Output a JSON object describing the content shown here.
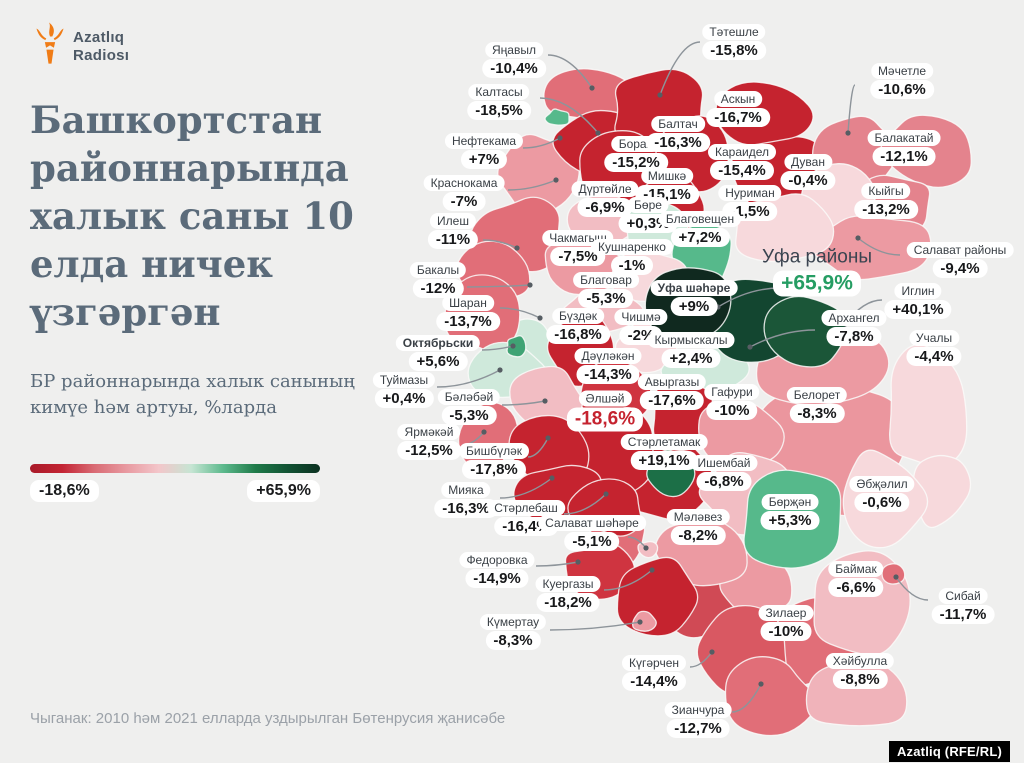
{
  "brand": {
    "line1": "Azatlıq",
    "line2": "Radiosı",
    "torch_color": "#f07c16"
  },
  "title": "Башкортстан\nрайоннарында\nхалык саны 10\nелда ничек\nүзгәргән",
  "subtitle": "БР районнарында халык санының\nкимүе һәм артуы, %ларда",
  "legend": {
    "min": "-18,6%",
    "max": "+65,9%",
    "colors": [
      "#a81a28",
      "#c32433",
      "#d96b74",
      "#e89aa1",
      "#f3c6ca",
      "#c6e5d3",
      "#5cb98c",
      "#1f7a49",
      "#115233",
      "#0b3020"
    ]
  },
  "source": "Чыганак: 2010 һәм 2021 елларда уздырылган Бөтенрусия җанисәбе",
  "badge": "Azatliq (RFE/RL)",
  "chart_data": {
    "type": "choropleth",
    "unit": "%",
    "title": "Башкортстан районнарында халык саны 10 елда ничек үзгәргән",
    "range": {
      "min": -18.6,
      "max": 65.9
    },
    "districts": [
      {
        "n": "Белорет",
        "d": "-8,3%",
        "val": -8.3,
        "c": "#eb969e",
        "b": [
          835,
          448,
          75,
          70
        ],
        "l": [
          817,
          405
        ]
      },
      {
        "n": "Учалы",
        "d": "-4,4%",
        "val": -4.4,
        "c": "#f7d9dc",
        "b": [
          928,
          408,
          44,
          66
        ],
        "l": [
          934,
          348
        ]
      },
      {
        "n": "",
        "d": "",
        "val": null,
        "c": "#f7d9dc",
        "b": [
          938,
          487,
          30,
          40
        ]
      },
      {
        "n": "Зилаер",
        "d": "-10%",
        "val": -10,
        "c": "#e16e78",
        "b": [
          805,
          645,
          55,
          45
        ],
        "l": [
          786,
          623
        ]
      },
      {
        "n": "Баймак",
        "d": "-6,6%",
        "val": -6.6,
        "c": "#f2bdc3",
        "b": [
          862,
          604,
          52,
          50
        ],
        "l": [
          856,
          579
        ]
      },
      {
        "n": "",
        "d": "",
        "val": null,
        "c": "#cfe9db",
        "b": [
          530,
          352,
          32,
          30
        ]
      },
      {
        "n": "",
        "d": "",
        "val": null,
        "c": "#c5232f",
        "b": [
          662,
          480,
          48,
          45
        ]
      },
      {
        "n": "",
        "d": "",
        "val": null,
        "c": "#d04a55",
        "b": [
          703,
          606,
          36,
          32
        ]
      },
      {
        "n": "",
        "d": "",
        "val": null,
        "c": "#ec9aa2",
        "b": [
          757,
          586,
          38,
          32
        ]
      },
      {
        "n": "",
        "d": "",
        "val": null,
        "c": "#e16e78",
        "b": [
          616,
          541,
          32,
          26
        ]
      },
      {
        "n": "Яңавыл",
        "d": "-10,4%",
        "val": -10.4,
        "c": "#e16e78",
        "b": [
          592,
          95,
          45,
          28
        ],
        "l": [
          514,
          60
        ],
        "ld": [
          548,
          55,
          592,
          88
        ]
      },
      {
        "n": "Краснокама",
        "d": "-7%",
        "val": -7,
        "c": "#ec9aa2",
        "b": [
          540,
          175,
          40,
          40
        ],
        "l": [
          464,
          193
        ],
        "ld": [
          508,
          190,
          556,
          180
        ]
      },
      {
        "n": "Калтасы",
        "d": "-18,5%",
        "val": -18.5,
        "c": "#c5232f",
        "b": [
          605,
          140,
          48,
          36
        ],
        "l": [
          499,
          102
        ],
        "ld": [
          540,
          98,
          598,
          133
        ]
      },
      {
        "n": "Тәтешле",
        "d": "-15,8%",
        "val": -15.8,
        "c": "#c5232f",
        "b": [
          660,
          110,
          50,
          38
        ],
        "l": [
          734,
          42
        ],
        "ld": [
          700,
          42,
          660,
          95
        ]
      },
      {
        "n": "Борай",
        "d": "-15,2%",
        "val": -15.2,
        "c": "#c5232f",
        "b": [
          622,
          172,
          50,
          38
        ],
        "l": [
          636,
          154
        ]
      },
      {
        "n": "Балтач",
        "d": "-16,3%",
        "val": -16.3,
        "c": "#c5232f",
        "b": [
          690,
          155,
          40,
          40
        ],
        "l": [
          678,
          134
        ]
      },
      {
        "n": "Караидел",
        "d": "-15,4%",
        "val": -15.4,
        "c": "#c5232f",
        "b": [
          790,
          182,
          62,
          46
        ],
        "l": [
          742,
          162
        ]
      },
      {
        "n": "Аскын",
        "d": "-16,7%",
        "val": -16.7,
        "c": "#c5232f",
        "b": [
          760,
          115,
          48,
          32
        ],
        "l": [
          738,
          109
        ]
      },
      {
        "n": "Мәчетле",
        "d": "-10,6%",
        "val": -10.6,
        "c": "#e4838d",
        "b": [
          855,
          150,
          45,
          38
        ],
        "l": [
          902,
          81
        ],
        "ld": [
          855,
          85,
          848,
          133
        ]
      },
      {
        "n": "Балакатай",
        "d": "-12,1%",
        "val": -12.1,
        "c": "#e4838d",
        "b": [
          925,
          150,
          48,
          38
        ],
        "l": [
          904,
          148
        ]
      },
      {
        "n": "Кыйгы",
        "d": "-13,2%",
        "val": -13.2,
        "c": "#e4838d",
        "b": [
          893,
          207,
          40,
          32
        ],
        "l": [
          886,
          201
        ]
      },
      {
        "n": "Дуван",
        "d": "-0,4%",
        "val": -0.4,
        "c": "#f7d9dc",
        "b": [
          838,
          196,
          36,
          40
        ],
        "l": [
          808,
          172
        ]
      },
      {
        "n": "Салават районы",
        "d": "-9,4%",
        "val": -9.4,
        "c": "#ec9aa2",
        "b": [
          870,
          247,
          60,
          36
        ],
        "l": [
          960,
          260
        ],
        "ld": [
          900,
          255,
          858,
          238
        ]
      },
      {
        "n": "Мишкә",
        "d": "-15,1%",
        "val": -15.1,
        "c": "#c5232f",
        "b": [
          672,
          210,
          36,
          32
        ],
        "l": [
          667,
          186
        ]
      },
      {
        "n": "Илеш",
        "d": "-11%",
        "val": -11,
        "c": "#e16e78",
        "b": [
          520,
          235,
          45,
          38
        ],
        "l": [
          453,
          231
        ],
        "ld": [
          483,
          240,
          517,
          248
        ]
      },
      {
        "n": "Дүртөйле",
        "d": "-6,9%",
        "val": -6.9,
        "c": "#f2bdc3",
        "b": [
          600,
          220,
          42,
          26
        ],
        "l": [
          605,
          199
        ]
      },
      {
        "n": "Бөре",
        "d": "+0,3%",
        "val": 0.3,
        "c": "#cfe9db",
        "b": [
          655,
          230,
          33,
          28
        ],
        "l": [
          648,
          215
        ]
      },
      {
        "n": "Нуриман",
        "d": "-1,5%",
        "val": -1.5,
        "c": "#f7d9dc",
        "b": [
          785,
          228,
          55,
          38
        ],
        "l": [
          750,
          203
        ]
      },
      {
        "n": "Благовещен",
        "d": "+7,2%",
        "val": 7.2,
        "c": "#56b98b",
        "b": [
          702,
          255,
          35,
          34
        ],
        "l": [
          700,
          229
        ]
      },
      {
        "n": "Чакмагыш",
        "d": "-7,5%",
        "val": -7.5,
        "c": "#ec9aa2",
        "b": [
          585,
          265,
          42,
          27
        ],
        "l": [
          578,
          248
        ]
      },
      {
        "n": "Кушнаренко",
        "d": "-1%",
        "val": -1,
        "c": "#f7d9dc",
        "b": [
          650,
          276,
          40,
          25
        ],
        "l": [
          632,
          257
        ]
      },
      {
        "n": "Бакалы",
        "d": "-12%",
        "val": -12,
        "c": "#e16e78",
        "b": [
          494,
          270,
          40,
          34
        ],
        "l": [
          438,
          280
        ],
        "ld": [
          467,
          287,
          530,
          285
        ]
      },
      {
        "n": "Благовар",
        "d": "-5,3%",
        "val": -5.3,
        "c": "#f2bdc3",
        "b": [
          600,
          312,
          40,
          25
        ],
        "l": [
          606,
          290
        ]
      },
      {
        "n": "Шаран",
        "d": "-13,7%",
        "val": -13.7,
        "c": "#e16e78",
        "b": [
          482,
          315,
          36,
          36
        ],
        "l": [
          468,
          313
        ],
        "ld": [
          500,
          308,
          540,
          318
        ]
      },
      {
        "n": "Бүздәк",
        "d": "-16,8%",
        "val": -16.8,
        "c": "#c5232f",
        "b": [
          582,
          348,
          34,
          36
        ],
        "l": [
          578,
          326
        ]
      },
      {
        "n": "Чишмә",
        "d": "-2%",
        "val": -2,
        "c": "#f7d9dc",
        "b": [
          650,
          345,
          33,
          28
        ],
        "l": [
          641,
          327
        ]
      },
      {
        "n": "Туймазы",
        "d": "+0,4%",
        "val": 0.4,
        "c": "#cfe9db",
        "b": [
          508,
          372,
          36,
          28
        ],
        "l": [
          404,
          390
        ],
        "ld": [
          437,
          387,
          500,
          370
        ]
      },
      {
        "n": "Кырмыскалы",
        "d": "+2,4%",
        "val": 2.4,
        "c": "#cfe9db",
        "b": [
          707,
          372,
          42,
          26
        ],
        "l": [
          691,
          350
        ]
      },
      {
        "n": "Дәүләкән",
        "d": "-14,3%",
        "val": -14.3,
        "c": "#cf3440",
        "b": [
          614,
          390,
          40,
          32
        ],
        "l": [
          608,
          366
        ]
      },
      {
        "n": "Авыргазы",
        "d": "-17,6%",
        "val": -17.6,
        "c": "#c5232f",
        "b": [
          684,
          414,
          33,
          35
        ],
        "l": [
          672,
          392
        ]
      },
      {
        "n": "Гафури",
        "d": "-10%",
        "val": -10,
        "c": "#ec9aa2",
        "b": [
          737,
          432,
          44,
          38
        ],
        "l": [
          732,
          402
        ]
      },
      {
        "n": "Архангел",
        "d": "-7,8%",
        "val": -7.8,
        "c": "#ec9aa2",
        "b": [
          820,
          365,
          70,
          45
        ],
        "l": [
          854,
          328
        ],
        "ld": [
          815,
          330,
          750,
          347
        ]
      },
      {
        "n": "Бәләбәй",
        "d": "-5,3%",
        "val": -5.3,
        "c": "#f2bdc3",
        "b": [
          548,
          403,
          40,
          33
        ],
        "l": [
          469,
          407
        ],
        "ld": [
          502,
          405,
          545,
          401
        ]
      },
      {
        "n": "Әлшәй",
        "d": "-18,6%",
        "val": -18.6,
        "c": "#c5232f",
        "b": [
          615,
          450,
          46,
          42
        ],
        "l": [
          605,
          411
        ],
        "st": "min"
      },
      {
        "n": "Ярмәкәй",
        "d": "-12,5%",
        "val": -12.5,
        "c": "#e16e78",
        "b": [
          487,
          437,
          29,
          34
        ],
        "l": [
          429,
          442
        ],
        "ld": [
          462,
          445,
          484,
          432
        ]
      },
      {
        "n": "Бишбүләк",
        "d": "-17,8%",
        "val": -17.8,
        "c": "#c5232f",
        "b": [
          550,
          453,
          40,
          36
        ],
        "l": [
          494,
          461
        ],
        "ld": [
          528,
          457,
          548,
          438
        ]
      },
      {
        "n": "Мияка",
        "d": "-16,3%",
        "val": -16.3,
        "c": "#c5232f",
        "b": [
          560,
          496,
          45,
          33
        ],
        "l": [
          466,
          500
        ],
        "ld": [
          500,
          498,
          552,
          478
        ]
      },
      {
        "n": "Стәрлебаш",
        "d": "-16,4%",
        "val": -16.4,
        "c": "#c5232f",
        "b": [
          608,
          506,
          38,
          29
        ],
        "l": [
          526,
          518
        ],
        "ld": [
          564,
          514,
          606,
          494
        ]
      },
      {
        "n": "Ишембай",
        "d": "-6,8%",
        "val": -6.8,
        "c": "#f2bdc3",
        "b": [
          746,
          492,
          45,
          40
        ],
        "l": [
          724,
          473
        ]
      },
      {
        "n": "Мәләвез",
        "d": "-8,2%",
        "val": -8.2,
        "c": "#ec9aa2",
        "b": [
          704,
          550,
          44,
          36
        ],
        "l": [
          698,
          527
        ]
      },
      {
        "n": "Бөрҗән",
        "d": "+5,3%",
        "val": 5.3,
        "c": "#56b98b",
        "b": [
          792,
          518,
          55,
          55
        ],
        "l": [
          790,
          512
        ]
      },
      {
        "n": "Әбҗәлил",
        "d": "-0,6%",
        "val": -0.6,
        "c": "#f7d9dc",
        "b": [
          880,
          502,
          45,
          55
        ],
        "l": [
          882,
          494
        ]
      },
      {
        "n": "Федоровка",
        "d": "-14,9%",
        "val": -14.9,
        "c": "#cf3440",
        "b": [
          598,
          570,
          36,
          26
        ],
        "l": [
          497,
          570
        ],
        "ld": [
          536,
          566,
          578,
          562
        ]
      },
      {
        "n": "Куергазы",
        "d": "-18,2%",
        "val": -18.2,
        "c": "#c5232f",
        "b": [
          658,
          596,
          44,
          38
        ],
        "l": [
          568,
          594
        ],
        "ld": [
          604,
          590,
          652,
          570
        ]
      },
      {
        "n": "Күгәрчен",
        "d": "-14,4%",
        "val": -14.4,
        "c": "#d95862",
        "b": [
          742,
          652,
          50,
          45
        ],
        "l": [
          654,
          673
        ],
        "ld": [
          690,
          667,
          712,
          652
        ]
      },
      {
        "n": "Зианчура",
        "d": "-12,7%",
        "val": -12.7,
        "c": "#e16e78",
        "b": [
          770,
          700,
          46,
          40
        ],
        "l": [
          698,
          720
        ],
        "ld": [
          732,
          712,
          761,
          684
        ]
      },
      {
        "n": "Хәйбулла",
        "d": "-8,8%",
        "val": -8.8,
        "c": "#f0b3ba",
        "b": [
          856,
          695,
          50,
          38
        ],
        "l": [
          860,
          671
        ]
      },
      {
        "n": "Уфа районы",
        "d": "+65,9%",
        "val": 65.9,
        "c": "#134630",
        "b": [
          750,
          318,
          56,
          40
        ],
        "l": [
          817,
          271
        ],
        "ld": [
          780,
          288,
          718,
          307
        ],
        "st": "max"
      },
      {
        "n": "Иглин",
        "d": "+40,1%",
        "val": 40.1,
        "c": "#1b5638",
        "b": [
          810,
          332,
          44,
          34
        ],
        "l": [
          918,
          301
        ],
        "ld": [
          882,
          300,
          845,
          324
        ]
      },
      {
        "n": "Уфа шәһәре",
        "d": "+9%",
        "val": 9,
        "c": "#10291f",
        "b": [
          688,
          302,
          40,
          40
        ],
        "l": [
          694,
          298
        ],
        "st": "city"
      },
      {
        "n": "Стәрлетамак",
        "d": "+19,1%",
        "val": 19.1,
        "c": "#1c6f47",
        "b": [
          672,
          474,
          24,
          26
        ],
        "l": [
          664,
          452
        ]
      },
      {
        "n": "Нефтекама",
        "d": "+7%",
        "val": 7,
        "c": "#56b98b",
        "b": [
          558,
          118,
          12,
          9
        ],
        "l": [
          484,
          151
        ],
        "ld": [
          523,
          148,
          560,
          138
        ]
      },
      {
        "n": "Октябрьски",
        "d": "+5,6%",
        "val": 5.6,
        "c": "#3fa374",
        "b": [
          517,
          346,
          11,
          10
        ],
        "l": [
          438,
          353
        ],
        "ld": [
          482,
          350,
          513,
          346
        ],
        "st": "city"
      },
      {
        "n": "Сибай",
        "d": "-11,7%",
        "val": -11.7,
        "c": "#e16e78",
        "b": [
          892,
          574,
          12,
          10
        ],
        "l": [
          963,
          606
        ],
        "ld": [
          928,
          600,
          896,
          577
        ]
      },
      {
        "n": "Күмертау",
        "d": "-8,3%",
        "val": -8.3,
        "c": "#ec9aa2",
        "b": [
          644,
          622,
          13,
          10
        ],
        "l": [
          513,
          632
        ],
        "ld": [
          550,
          630,
          640,
          622
        ]
      },
      {
        "n": "Салават шәһәре",
        "d": "-5,1%",
        "val": -5.1,
        "c": "#f2bdc3",
        "b": [
          648,
          550,
          11,
          9
        ],
        "l": [
          592,
          533
        ],
        "ld": [
          628,
          537,
          646,
          548
        ]
      }
    ]
  }
}
